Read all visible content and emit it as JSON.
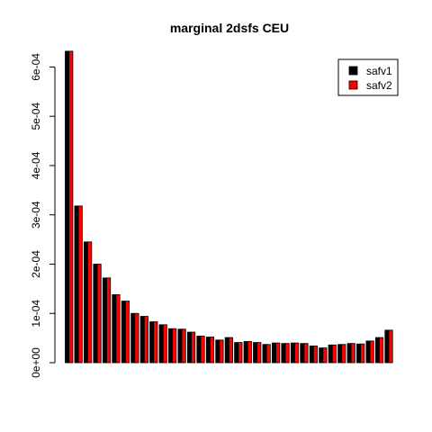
{
  "chart_data": {
    "type": "bar",
    "title": "marginal 2dsfs CEU",
    "xlabel": "",
    "ylabel": "",
    "ylim": [
      0,
      0.00063
    ],
    "y_ticks": [
      0,
      0.0001,
      0.0002,
      0.0003,
      0.0004,
      0.0005,
      0.0006
    ],
    "y_tick_labels": [
      "0e+00",
      "1e-04",
      "2e-04",
      "3e-04",
      "4e-04",
      "5e-04",
      "6e-04"
    ],
    "legend_position": "top-right",
    "grid": false,
    "series": [
      {
        "name": "safv1",
        "color": "#000000",
        "values": [
          0.000632,
          0.000318,
          0.000245,
          0.0002,
          0.000172,
          0.000138,
          0.000125,
          0.0001,
          9.4e-05,
          8.3e-05,
          7.7e-05,
          6.9e-05,
          6.8e-05,
          6.2e-05,
          5.4e-05,
          5.2e-05,
          4.6e-05,
          5.1e-05,
          4.1e-05,
          4.3e-05,
          4.1e-05,
          3.7e-05,
          4e-05,
          3.9e-05,
          4e-05,
          3.9e-05,
          3.4e-05,
          3e-05,
          3.6e-05,
          3.7e-05,
          3.9e-05,
          3.8e-05,
          4.4e-05,
          5.1e-05,
          6.6e-05
        ]
      },
      {
        "name": "safv2",
        "color": "#ff0000",
        "values": [
          0.000632,
          0.000318,
          0.000245,
          0.0002,
          0.000172,
          0.000138,
          0.000125,
          0.0001,
          9.4e-05,
          8.3e-05,
          7.7e-05,
          6.9e-05,
          6.8e-05,
          6.2e-05,
          5.4e-05,
          5.2e-05,
          4.6e-05,
          5.1e-05,
          4.1e-05,
          4.3e-05,
          4.1e-05,
          3.7e-05,
          4e-05,
          3.9e-05,
          4e-05,
          3.9e-05,
          3.4e-05,
          3e-05,
          3.6e-05,
          3.7e-05,
          3.9e-05,
          3.8e-05,
          4.4e-05,
          5.1e-05,
          6.6e-05
        ]
      }
    ]
  }
}
